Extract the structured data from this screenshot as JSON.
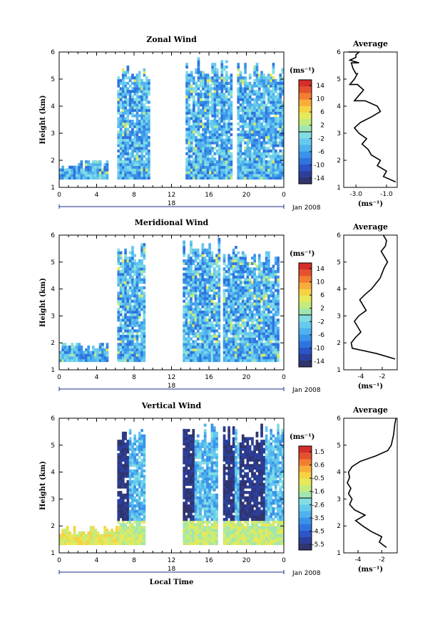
{
  "chart_data": [
    {
      "type": "heatmap",
      "title": "Zonal Wind",
      "ylabel": "Height (km)",
      "ylim": [
        1,
        6
      ],
      "yticks": [
        "1",
        "2",
        "3",
        "4",
        "5",
        "6"
      ],
      "xlim": [
        0,
        24
      ],
      "xticks": [
        "0",
        "4",
        "8",
        "12",
        "16",
        "20",
        "0"
      ],
      "date_label": "18",
      "month_label": "Jan 2008",
      "colorbar_unit": "(ms⁻¹)",
      "colorbar_ticks": [
        "14",
        "10",
        "6",
        "2",
        "-2",
        "-6",
        "-10",
        "-14"
      ],
      "colorbar_range": [
        -16,
        16
      ],
      "data_segments": [
        [
          0,
          5.2
        ],
        [
          6.2,
          9.5
        ],
        [
          13.5,
          18.5
        ],
        [
          19,
          24
        ]
      ],
      "profile": {
        "title": "Average",
        "xlabel": "(ms⁻¹)",
        "xticks": [
          "-3.0",
          "-1.0"
        ],
        "xlim": [
          -3.8,
          -0.3
        ],
        "x": [
          -0.4,
          -1.2,
          -1.0,
          -1.6,
          -1.4,
          -2.0,
          -2.2,
          -2.6,
          -2.3,
          -2.8,
          -3.1,
          -2.7,
          -2.0,
          -1.4,
          -1.6,
          -2.4,
          -2.8,
          -2.5,
          -2.9,
          -3.1,
          -2.9,
          -3.2,
          -3.3,
          -3.0,
          -2.8,
          -3.1,
          -3.4,
          -3.0,
          -2.8,
          -3.0,
          -3.4,
          -3.5
        ],
        "heights": [
          1.2,
          1.4,
          1.6,
          1.8,
          2.0,
          2.2,
          2.4,
          2.6,
          2.8,
          3.0,
          3.2,
          3.4,
          3.6,
          3.8,
          4.0,
          4.2,
          4.4,
          4.6,
          4.8,
          5.0,
          5.2,
          5.4,
          5.6,
          5.8,
          6.0,
          4.2,
          4.8,
          5.2,
          5.6,
          5.9,
          5.7,
          6.0
        ]
      }
    },
    {
      "type": "heatmap",
      "title": "Meridional Wind",
      "ylabel": "Height (km)",
      "ylim": [
        1,
        6
      ],
      "yticks": [
        "1",
        "2",
        "3",
        "4",
        "5",
        "6"
      ],
      "xlim": [
        0,
        24
      ],
      "xticks": [
        "0",
        "4",
        "8",
        "12",
        "16",
        "20",
        "0"
      ],
      "date_label": "18",
      "month_label": "Jan 2008",
      "colorbar_unit": "(ms⁻¹)",
      "colorbar_ticks": [
        "14",
        "10",
        "6",
        "2",
        "-2",
        "-6",
        "-10",
        "-14"
      ],
      "colorbar_range": [
        -16,
        16
      ],
      "data_segments": [
        [
          0,
          5.2
        ],
        [
          6.2,
          9.0
        ],
        [
          13.2,
          17.0
        ],
        [
          17.5,
          23.5
        ]
      ],
      "profile": {
        "title": "Average",
        "xlabel": "(ms⁻¹)",
        "xticks": [
          "-4",
          "-2"
        ],
        "xlim": [
          -5.6,
          -0.6
        ],
        "x": [
          -0.8,
          -2.5,
          -4.8,
          -4.9,
          -4.5,
          -4.0,
          -4.3,
          -4.6,
          -4.2,
          -3.5,
          -3.8,
          -4.1,
          -3.6,
          -3.0,
          -2.6,
          -2.2,
          -2.0,
          -1.8,
          -1.5,
          -1.8,
          -2.1,
          -1.7,
          -1.6,
          -1.9
        ],
        "heights": [
          1.4,
          1.6,
          1.8,
          2.0,
          2.2,
          2.4,
          2.6,
          2.8,
          3.0,
          3.2,
          3.4,
          3.6,
          3.8,
          4.0,
          4.2,
          4.4,
          4.6,
          4.8,
          5.0,
          5.2,
          5.4,
          5.6,
          5.8,
          6.0
        ]
      }
    },
    {
      "type": "heatmap",
      "title": "Vertical Wind",
      "ylabel": "Height (km)",
      "xlabel": "Local Time",
      "ylim": [
        1,
        6
      ],
      "yticks": [
        "1",
        "2",
        "3",
        "4",
        "5",
        "6"
      ],
      "xlim": [
        0,
        24
      ],
      "xticks": [
        "0",
        "4",
        "8",
        "12",
        "16",
        "20",
        "0"
      ],
      "date_label": "18",
      "month_label": "Jan 2008",
      "colorbar_unit": "(ms⁻¹)",
      "colorbar_ticks": [
        "1.5",
        "0.6",
        "-0.5",
        "-1.6",
        "-2.6",
        "-3.5",
        "-4.5",
        "-5.5"
      ],
      "colorbar_range": [
        -6,
        2
      ],
      "data_segments": [
        [
          0,
          6.2
        ],
        [
          6.2,
          9.0
        ],
        [
          13.2,
          16.8
        ],
        [
          17.5,
          24
        ]
      ],
      "profile": {
        "title": "Average",
        "xlabel": "(ms⁻¹)",
        "xticks": [
          "-4",
          "-2"
        ],
        "xlim": [
          -5.2,
          -0.7
        ],
        "x": [
          -1.6,
          -2.2,
          -2.0,
          -2.9,
          -3.6,
          -4.2,
          -3.4,
          -4.3,
          -4.7,
          -4.5,
          -4.8,
          -4.6,
          -4.9,
          -4.7,
          -4.8,
          -4.5,
          -3.8,
          -2.5,
          -1.5,
          -1.2,
          -1.0,
          -0.9,
          -0.8
        ],
        "heights": [
          1.2,
          1.4,
          1.6,
          1.8,
          2.0,
          2.2,
          2.4,
          2.6,
          2.8,
          3.0,
          3.2,
          3.4,
          3.6,
          3.8,
          4.0,
          4.2,
          4.4,
          4.6,
          4.8,
          5.0,
          5.4,
          5.8,
          6.0
        ]
      }
    }
  ]
}
